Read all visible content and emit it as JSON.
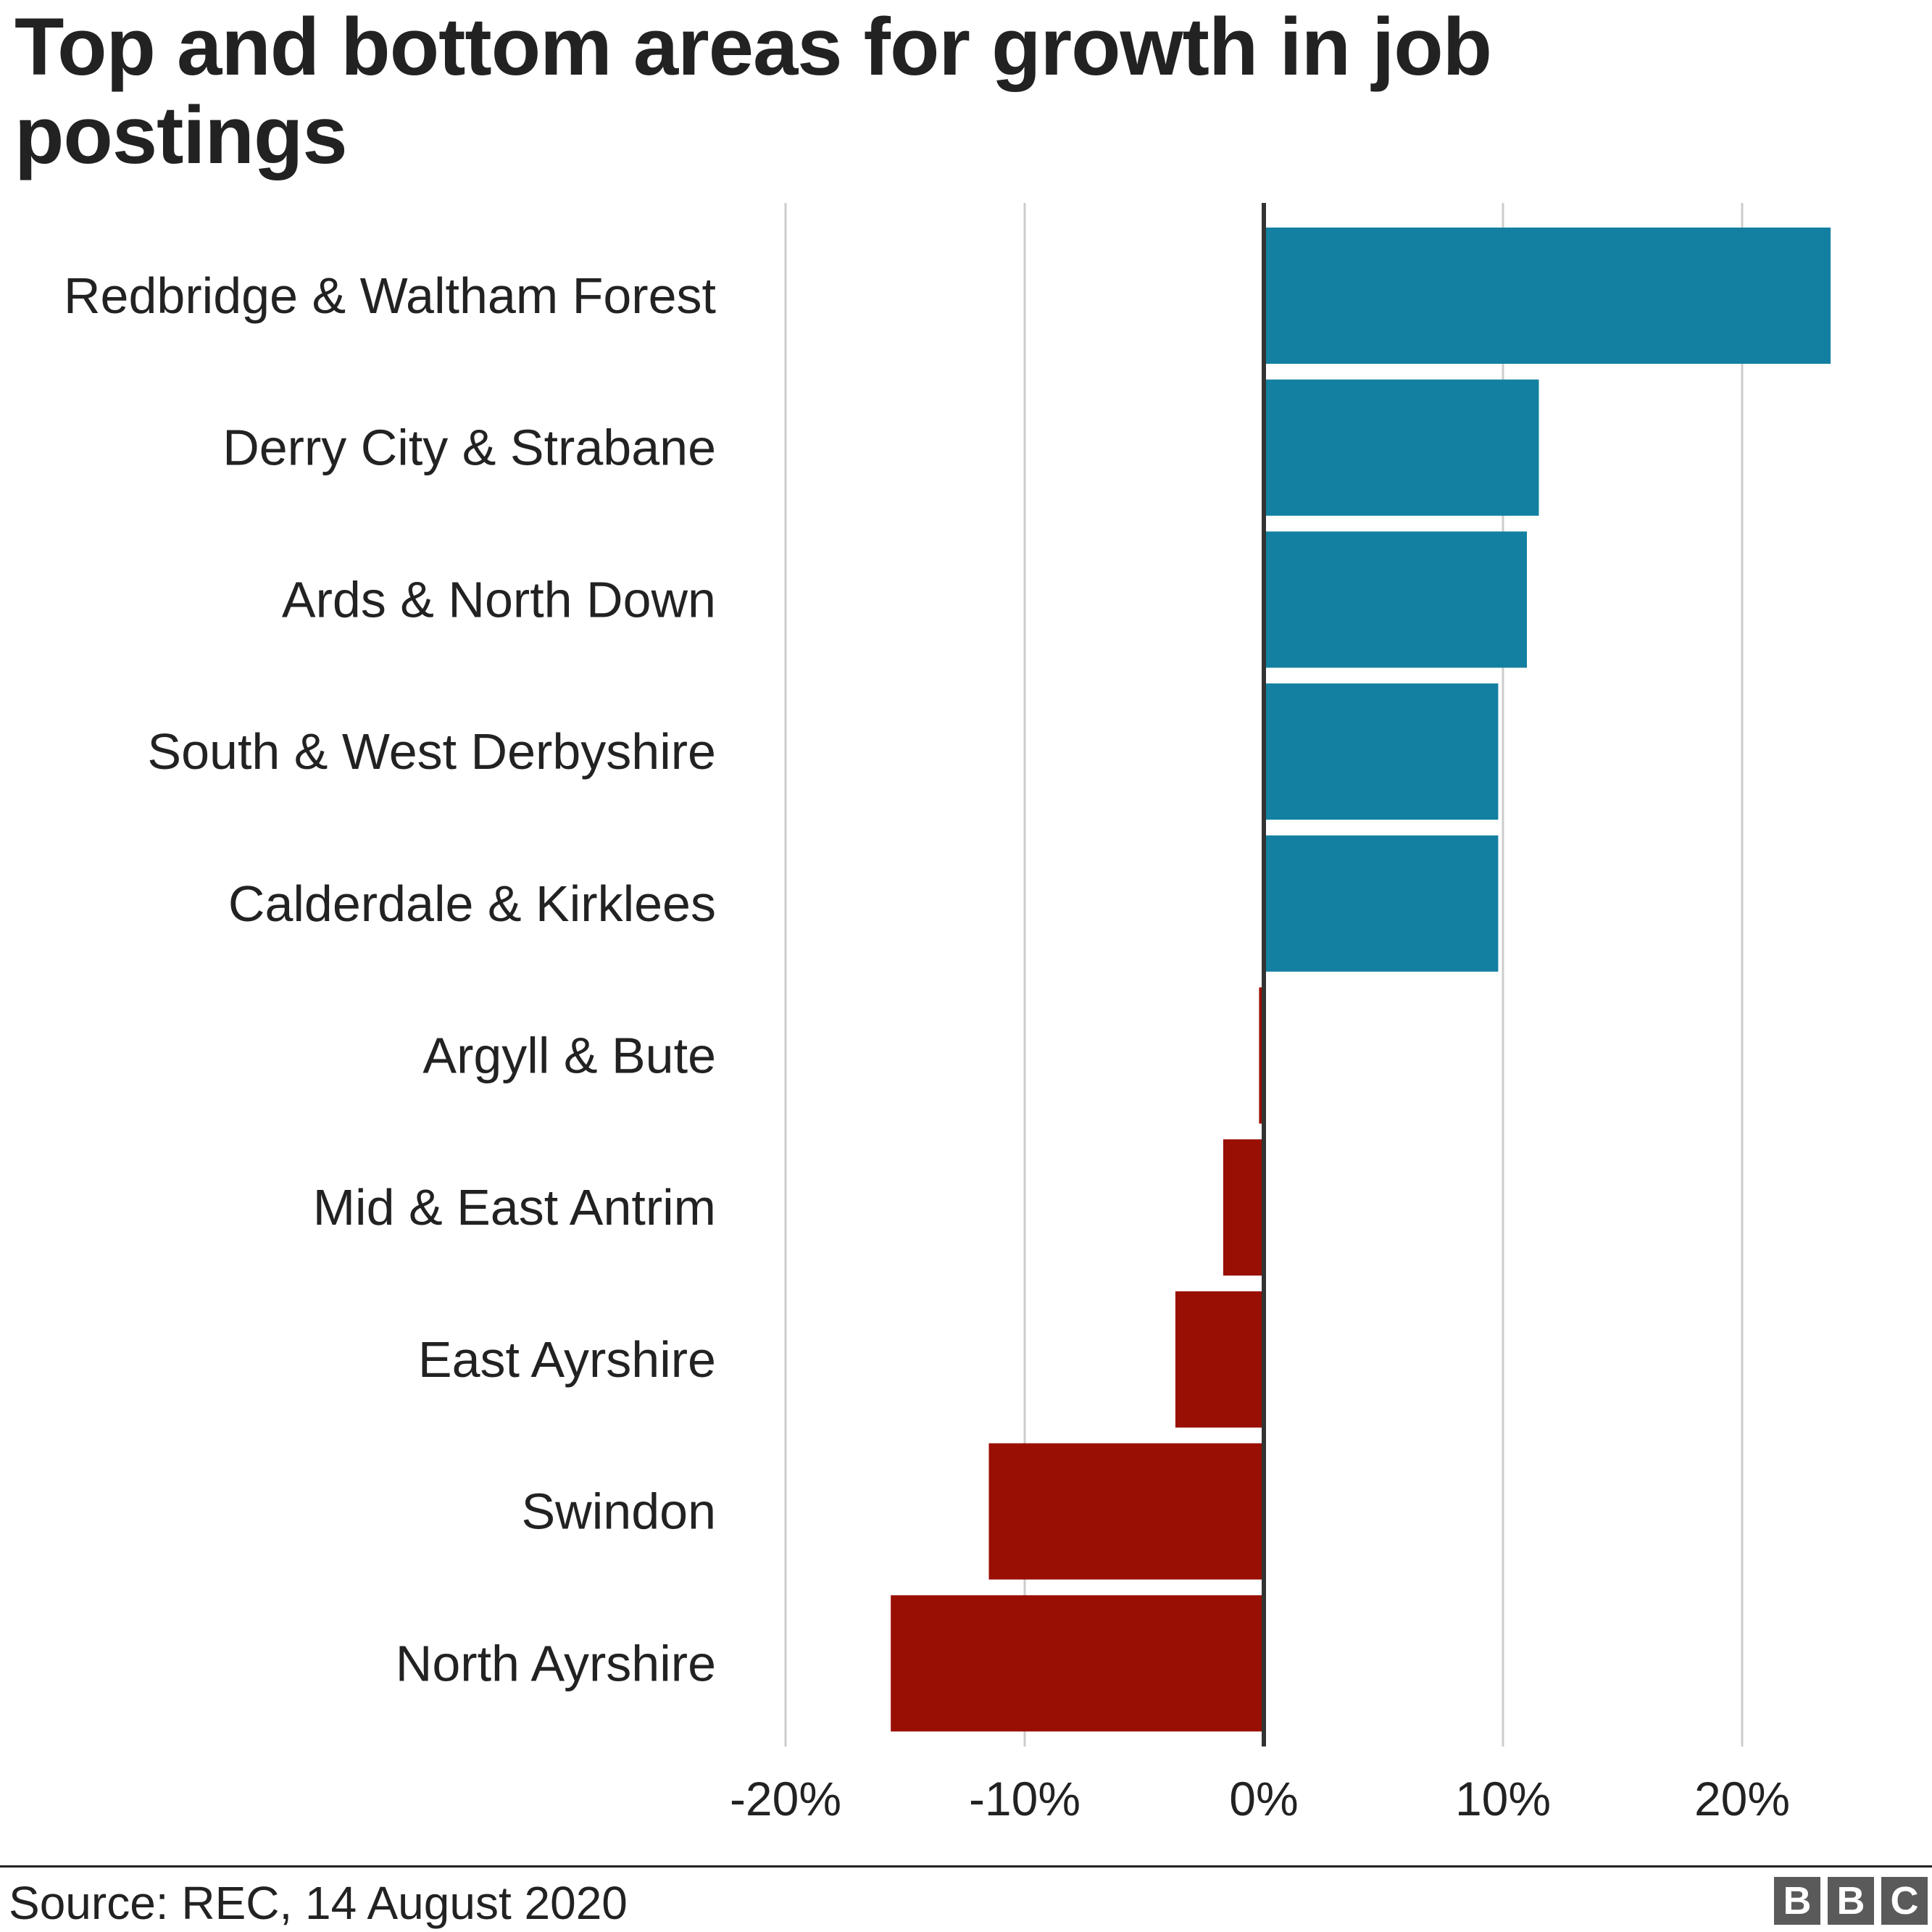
{
  "title": "Top and bottom areas for growth in job postings",
  "source": "Source: REC, 14 August 2020",
  "logo": [
    "B",
    "B",
    "C"
  ],
  "colors": {
    "positive": "#1380A1",
    "negative": "#990F04",
    "grid": "#CCCCCC",
    "zero_line": "#333333"
  },
  "chart_data": {
    "type": "bar",
    "orientation": "horizontal",
    "title": "Top and bottom areas for growth in job postings",
    "xlabel": "",
    "ylabel": "",
    "xlim": [
      -20,
      25
    ],
    "x_ticks": [
      -20,
      -10,
      0,
      10,
      20
    ],
    "x_tick_labels": [
      "-20%",
      "-10%",
      "0%",
      "10%",
      "20%"
    ],
    "grid": "vertical",
    "legend": "none",
    "categories": [
      "Redbridge & Waltham Forest",
      "Derry City & Strabane",
      "Ards & North Down",
      "South & West Derbyshire",
      "Calderdale & Kirklees",
      "Argyll & Bute",
      "Mid & East Antrim",
      "East Ayrshire",
      "Swindon",
      "North Ayrshire"
    ],
    "values": [
      23.7,
      11.5,
      11.0,
      9.8,
      9.8,
      -0.2,
      -1.7,
      -3.7,
      -11.5,
      -15.6
    ]
  }
}
